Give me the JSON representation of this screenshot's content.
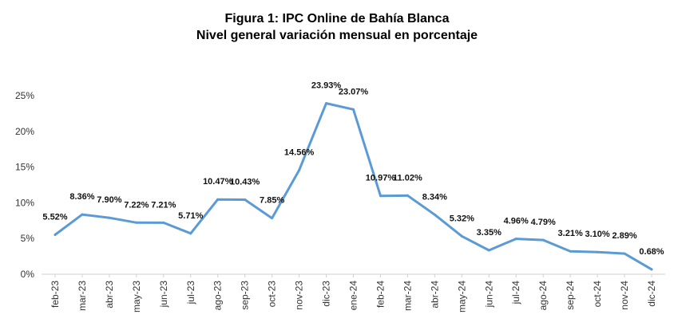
{
  "chart_data": {
    "type": "line",
    "title": "Figura 1: IPC Online de Bahía Blanca",
    "subtitle": "Nivel general variación mensual en porcentaje",
    "xlabel": "",
    "ylabel": "",
    "categories": [
      "feb-23",
      "mar-23",
      "abr-23",
      "may-23",
      "jun-23",
      "jul-23",
      "ago-23",
      "sep-23",
      "oct-23",
      "nov-23",
      "dic-23",
      "ene-24",
      "feb-24",
      "mar-24",
      "abr-24",
      "may-24",
      "jun-24",
      "jul-24",
      "ago-24",
      "sep-24",
      "oct-24",
      "nov-24",
      "dic-24"
    ],
    "series": [
      {
        "values": [
          5.52,
          8.36,
          7.9,
          7.22,
          7.21,
          5.71,
          10.47,
          10.43,
          7.85,
          14.56,
          23.93,
          23.07,
          10.97,
          11.02,
          8.34,
          5.32,
          3.35,
          4.96,
          4.79,
          3.21,
          3.1,
          2.89,
          0.68
        ],
        "data_labels": [
          "5.52%",
          "8.36%",
          "7.90%",
          "7.22%",
          "7.21%",
          "5.71%",
          "10.47%",
          "10.43%",
          "7.85%",
          "14.56%",
          "23.93%",
          "23.07%",
          "10.97%",
          "11.02%",
          "8.34%",
          "5.32%",
          "3.35%",
          "4.96%",
          "4.79%",
          "3.21%",
          "3.10%",
          "2.89%",
          "0.68%"
        ],
        "color": "#5b9bd5"
      }
    ],
    "y_ticks": [
      {
        "value": 0,
        "label": "0%"
      },
      {
        "value": 5,
        "label": "5%"
      },
      {
        "value": 10,
        "label": "10%"
      },
      {
        "value": 15,
        "label": "15%"
      },
      {
        "value": 20,
        "label": "20%"
      },
      {
        "value": 25,
        "label": "25%"
      }
    ],
    "ylim": [
      0,
      25
    ],
    "grid": false,
    "legend": "none"
  }
}
